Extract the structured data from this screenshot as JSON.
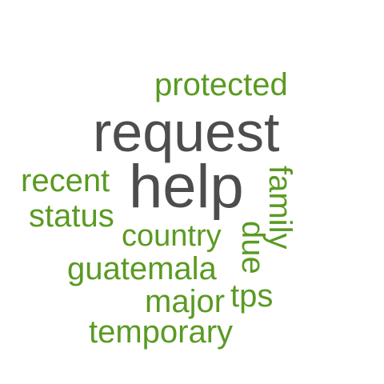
{
  "colors": {
    "primary_word": "#4d4d4e",
    "secondary_words": "#5a9a22",
    "background": "#ffffff"
  },
  "words": {
    "protected": "protected",
    "request": "request",
    "help": "help",
    "recent": "recent",
    "status": "status",
    "country": "country",
    "guatemala": "guatemala",
    "major": "major",
    "tps": "tps",
    "temporary": "temporary",
    "family": "family",
    "due": "due"
  }
}
